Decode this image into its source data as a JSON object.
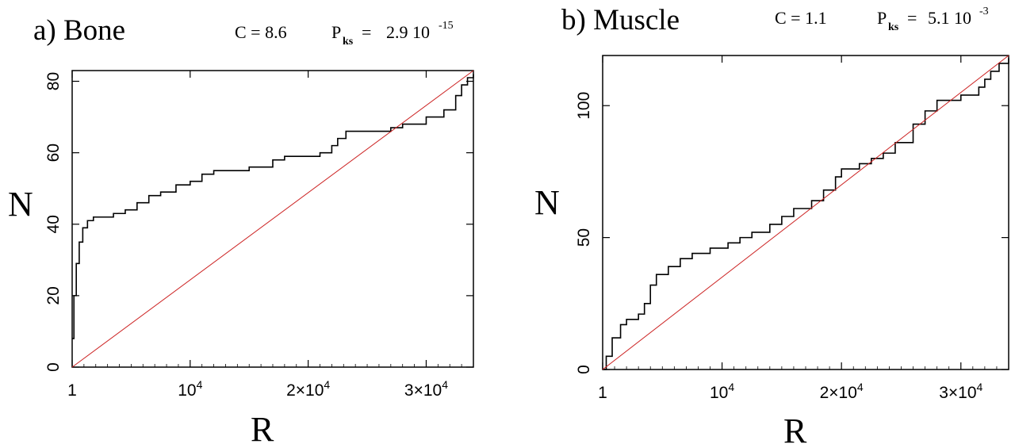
{
  "chart_data": [
    {
      "type": "line",
      "panel_label": "a) Bone",
      "stat_c": "C = 8.6",
      "stat_p_letter": "P",
      "stat_p_sub": "ks",
      "stat_p_eq": "=",
      "stat_p_mant": "2.9 10",
      "stat_p_exp": "-15",
      "xlabel": "R",
      "ylabel": "N",
      "xlim": [
        1,
        34000
      ],
      "ylim": [
        0,
        83
      ],
      "xticks": [
        {
          "v": 1,
          "label": "1"
        },
        {
          "v": 10000,
          "label": "10",
          "sup": "4"
        },
        {
          "v": 20000,
          "label": "2×10",
          "sup": "4"
        },
        {
          "v": 30000,
          "label": "3×10",
          "sup": "4"
        }
      ],
      "yticks": [
        {
          "v": 0,
          "label": "0"
        },
        {
          "v": 20,
          "label": "20"
        },
        {
          "v": 40,
          "label": "40"
        },
        {
          "v": 60,
          "label": "60"
        },
        {
          "v": 80,
          "label": "80"
        }
      ],
      "series": [
        {
          "kind": "step",
          "color": "#000000",
          "points": [
            [
              1,
              8
            ],
            [
              150,
              20
            ],
            [
              350,
              29
            ],
            [
              600,
              35
            ],
            [
              900,
              39
            ],
            [
              1300,
              41
            ],
            [
              1800,
              42
            ],
            [
              3000,
              42
            ],
            [
              3500,
              43
            ],
            [
              4500,
              44
            ],
            [
              5500,
              46
            ],
            [
              6500,
              48
            ],
            [
              7500,
              49
            ],
            [
              8800,
              51
            ],
            [
              10000,
              52
            ],
            [
              11000,
              54
            ],
            [
              12000,
              55
            ],
            [
              15000,
              56
            ],
            [
              17000,
              58
            ],
            [
              18000,
              59
            ],
            [
              21000,
              60
            ],
            [
              22000,
              62
            ],
            [
              22500,
              64
            ],
            [
              23200,
              66
            ],
            [
              25000,
              66
            ],
            [
              27000,
              67
            ],
            [
              28000,
              68
            ],
            [
              30000,
              70
            ],
            [
              31500,
              72
            ],
            [
              32500,
              76
            ],
            [
              33000,
              79
            ],
            [
              33500,
              81
            ],
            [
              34000,
              82
            ]
          ]
        },
        {
          "kind": "diagonal",
          "color": "#cc2222",
          "points": [
            [
              1,
              0
            ],
            [
              34000,
              83
            ]
          ]
        }
      ]
    },
    {
      "type": "line",
      "panel_label": "b) Muscle",
      "stat_c": "C = 1.1",
      "stat_p_letter": "P",
      "stat_p_sub": "ks",
      "stat_p_eq": "=",
      "stat_p_mant": "5.1 10",
      "stat_p_exp": "-3",
      "xlabel": "R",
      "ylabel": "N",
      "xlim": [
        1,
        34000
      ],
      "ylim": [
        0,
        119
      ],
      "xticks": [
        {
          "v": 1,
          "label": "1"
        },
        {
          "v": 10000,
          "label": "10",
          "sup": "4"
        },
        {
          "v": 20000,
          "label": "2×10",
          "sup": "4"
        },
        {
          "v": 30000,
          "label": "3×10",
          "sup": "4"
        }
      ],
      "yticks": [
        {
          "v": 0,
          "label": "0"
        },
        {
          "v": 50,
          "label": "50"
        },
        {
          "v": 100,
          "label": "100"
        }
      ],
      "series": [
        {
          "kind": "step",
          "color": "#000000",
          "points": [
            [
              1,
              0
            ],
            [
              300,
              5
            ],
            [
              800,
              12
            ],
            [
              1500,
              17
            ],
            [
              2000,
              19
            ],
            [
              3000,
              21
            ],
            [
              3500,
              25
            ],
            [
              4000,
              32
            ],
            [
              4500,
              36
            ],
            [
              5500,
              39
            ],
            [
              6500,
              42
            ],
            [
              7500,
              44
            ],
            [
              9000,
              46
            ],
            [
              10500,
              48
            ],
            [
              11500,
              50
            ],
            [
              12500,
              52
            ],
            [
              14000,
              55
            ],
            [
              15000,
              58
            ],
            [
              16000,
              61
            ],
            [
              17500,
              64
            ],
            [
              18500,
              68
            ],
            [
              19500,
              73
            ],
            [
              20000,
              76
            ],
            [
              21500,
              78
            ],
            [
              22500,
              80
            ],
            [
              23500,
              82
            ],
            [
              24500,
              86
            ],
            [
              26000,
              93
            ],
            [
              27000,
              98
            ],
            [
              28000,
              102
            ],
            [
              30000,
              104
            ],
            [
              31500,
              107
            ],
            [
              32000,
              110
            ],
            [
              32500,
              113
            ],
            [
              33200,
              116
            ],
            [
              34000,
              118
            ]
          ]
        },
        {
          "kind": "diagonal",
          "color": "#cc2222",
          "points": [
            [
              1,
              0
            ],
            [
              34000,
              119
            ]
          ]
        }
      ]
    }
  ]
}
